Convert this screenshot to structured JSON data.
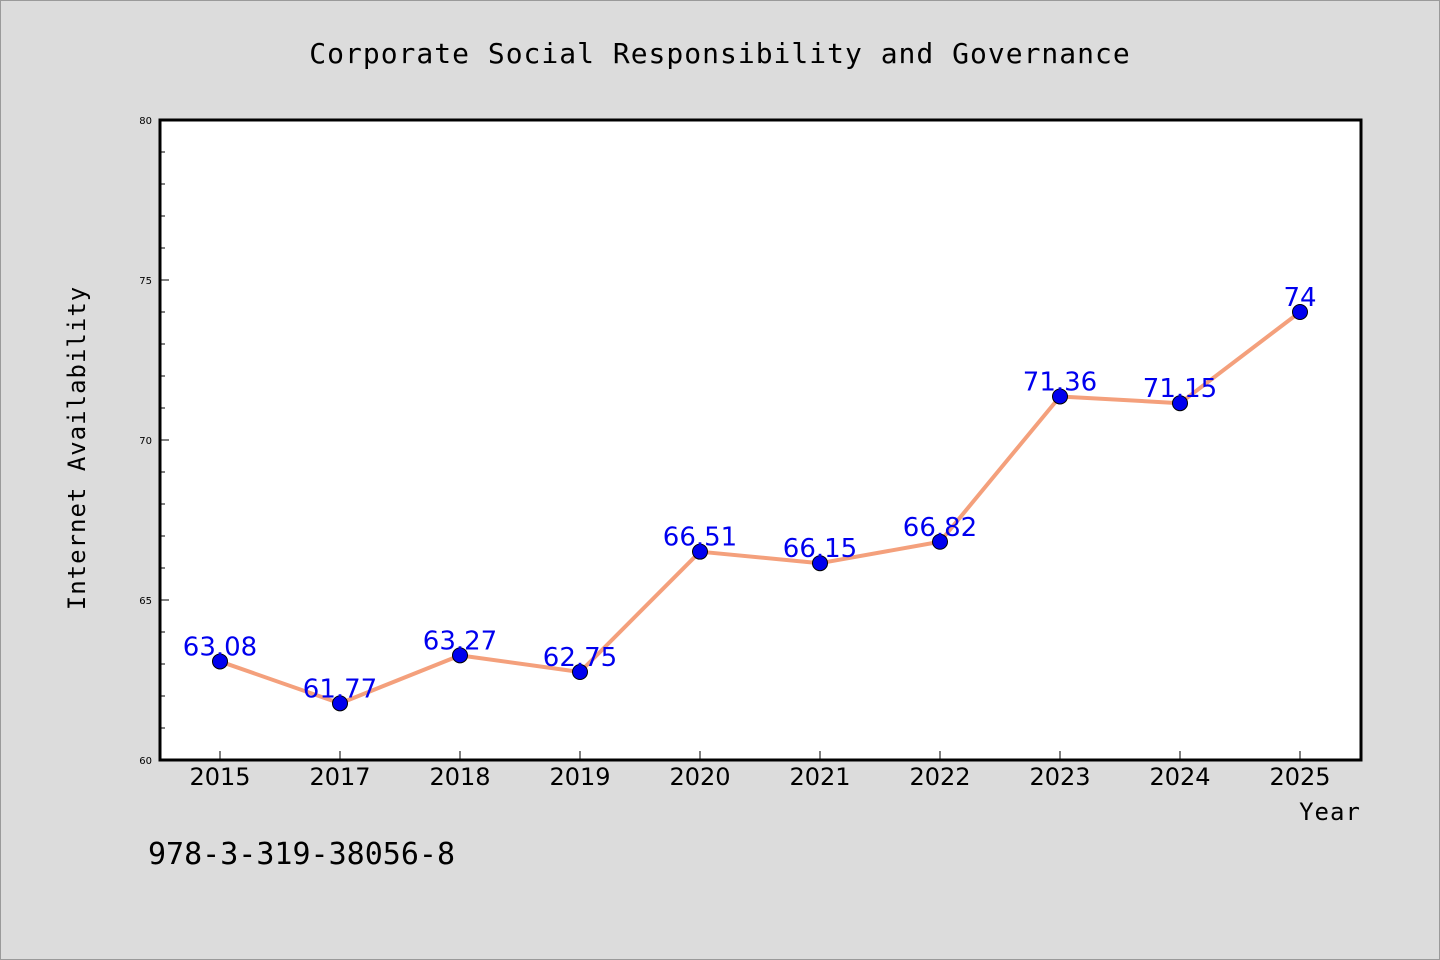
{
  "chart_data": {
    "type": "line",
    "title": "Corporate Social Responsibility and Governance",
    "xlabel": "Year",
    "ylabel": "Internet Availability",
    "categories": [
      "2015",
      "2017",
      "2018",
      "2019",
      "2020",
      "2021",
      "2022",
      "2023",
      "2024",
      "2025"
    ],
    "series": [
      {
        "values": [
          63.08,
          61.77,
          63.27,
          62.75,
          66.51,
          66.15,
          66.82,
          71.36,
          71.15,
          74
        ]
      }
    ],
    "data_labels": [
      "63.08",
      "61.77",
      "63.27",
      "62.75",
      "66.51",
      "66.15",
      "66.82",
      "71.36",
      "71.15",
      "74"
    ],
    "ylim": [
      60,
      80
    ],
    "yticks": [
      60,
      65,
      70,
      75,
      80
    ],
    "grid": false,
    "line_color": "#f4a07c",
    "marker_color": "#0000ee",
    "label_color": "#0000ee"
  },
  "footer": {
    "code": "978-3-319-38056-8"
  }
}
